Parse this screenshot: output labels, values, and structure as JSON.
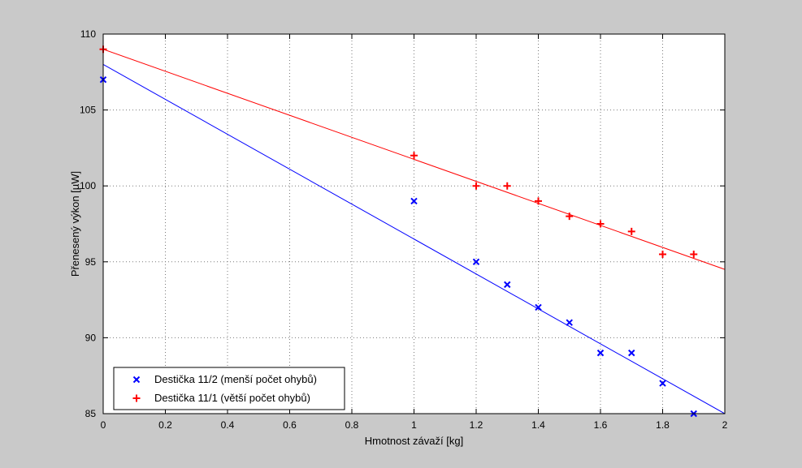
{
  "figure": {
    "background": "#c9c9c9",
    "plot_background": "#ffffff",
    "axis_color": "#000000",
    "grid_color": "#7a7a7a"
  },
  "chart_data": {
    "type": "scatter",
    "title": "",
    "xlabel": "Hmotnost závaží [kg]",
    "ylabel": "Přenesený výkon [µW]",
    "xlim": [
      0,
      2
    ],
    "ylim": [
      85,
      110
    ],
    "xticks": [
      0,
      0.2,
      0.4,
      0.6,
      0.8,
      1,
      1.2,
      1.4,
      1.6,
      1.8,
      2
    ],
    "yticks": [
      85,
      90,
      95,
      100,
      105,
      110
    ],
    "grid": true,
    "grid_style": "dotted",
    "legend_position": "lower-left",
    "series": [
      {
        "name": "Destička 11/2 (menší počet ohybů)",
        "marker": "x",
        "color": "#0000ff",
        "points": [
          [
            0,
            107
          ],
          [
            1,
            99
          ],
          [
            1.2,
            95
          ],
          [
            1.3,
            93.5
          ],
          [
            1.4,
            92
          ],
          [
            1.5,
            91
          ],
          [
            1.6,
            89
          ],
          [
            1.7,
            89
          ],
          [
            1.8,
            87
          ],
          [
            1.9,
            85
          ]
        ],
        "fit_line": {
          "x": [
            0,
            2
          ],
          "y": [
            108,
            85
          ]
        }
      },
      {
        "name": "Destička 11/1 (větší počet ohybů)",
        "marker": "+",
        "color": "#ff0000",
        "points": [
          [
            0,
            109
          ],
          [
            1,
            102
          ],
          [
            1.2,
            100
          ],
          [
            1.3,
            100
          ],
          [
            1.4,
            99
          ],
          [
            1.5,
            98
          ],
          [
            1.6,
            97.5
          ],
          [
            1.7,
            97
          ],
          [
            1.8,
            95.5
          ],
          [
            1.9,
            95.5
          ]
        ],
        "fit_line": {
          "x": [
            0,
            2
          ],
          "y": [
            109,
            94.5
          ]
        }
      }
    ]
  }
}
